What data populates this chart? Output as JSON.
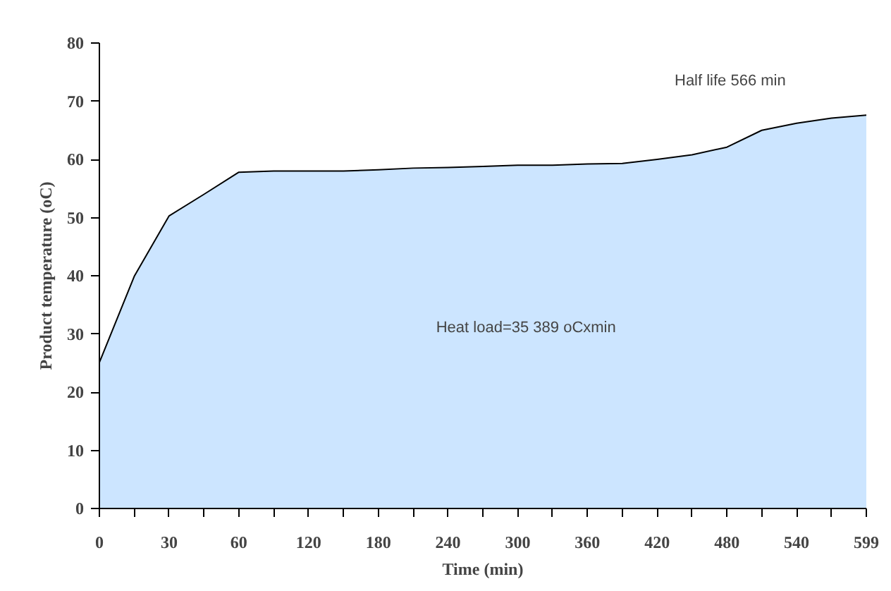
{
  "chart_data": {
    "type": "area",
    "xlabel": "Time (min)",
    "ylabel": "Product temperature (oC)",
    "categories": [
      "0",
      null,
      "30",
      null,
      "60",
      null,
      "120",
      null,
      "180",
      null,
      "240",
      null,
      "300",
      null,
      "360",
      null,
      "420",
      null,
      "480",
      null,
      "540",
      null,
      "599"
    ],
    "series": [
      {
        "color": "#cce5ff",
        "values": [
          25.1,
          39.9,
          50.3,
          54,
          57.8,
          58,
          58,
          58,
          58.2,
          58.5,
          58.6,
          58.8,
          59,
          59,
          59.2,
          59.3,
          60,
          60.8,
          62.1,
          65,
          66.2,
          67.1,
          67.6
        ]
      }
    ],
    "ylim": [
      0,
      80
    ],
    "yticks": [
      0,
      10,
      20,
      30,
      40,
      50,
      60,
      70,
      80
    ],
    "grid": false,
    "annotations": [
      "Half life 566 min",
      "Heat load=35 389 oCxmin"
    ]
  }
}
